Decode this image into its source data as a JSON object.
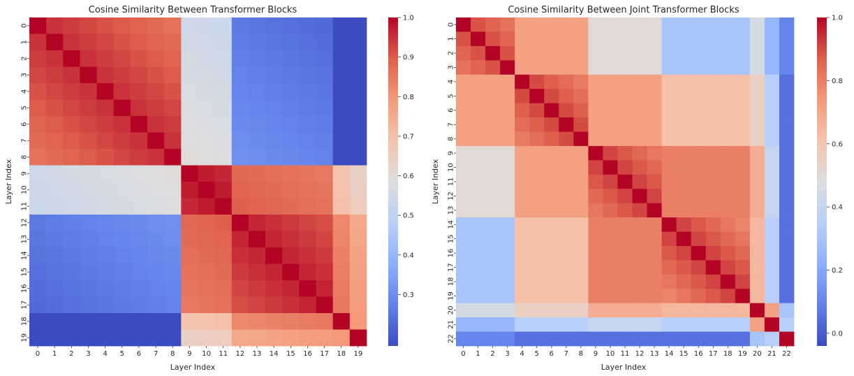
{
  "colormap": "coolwarm",
  "chart_data": [
    {
      "type": "heatmap",
      "title": "Cosine Similarity Between Transformer Blocks",
      "xlabel": "Layer Index",
      "ylabel": "Layer Index",
      "x": [
        "0",
        "1",
        "2",
        "3",
        "4",
        "5",
        "6",
        "7",
        "8",
        "9",
        "10",
        "11",
        "12",
        "13",
        "14",
        "15",
        "16",
        "17",
        "18",
        "19"
      ],
      "y": [
        "0",
        "1",
        "2",
        "3",
        "4",
        "5",
        "6",
        "7",
        "8",
        "9",
        "10",
        "11",
        "12",
        "13",
        "14",
        "15",
        "16",
        "17",
        "18",
        "19"
      ],
      "vmin": 0.17,
      "vmax": 1.0,
      "colorbar_ticks": [
        "0.3",
        "0.4",
        "0.5",
        "0.6",
        "0.7",
        "0.8",
        "0.9",
        "1.0"
      ],
      "model": {
        "blocks": [
          [
            0,
            8
          ],
          [
            9,
            11
          ],
          [
            12,
            17
          ],
          [
            18,
            18
          ],
          [
            19,
            19
          ]
        ],
        "within": [
          0.92,
          0.97,
          0.95,
          1.0,
          1.0
        ],
        "decay": 0.012,
        "between": [
          [
            1.0,
            0.6,
            0.33,
            0.2,
            0.2
          ],
          [
            0.6,
            1.0,
            0.9,
            0.74,
            0.7
          ],
          [
            0.33,
            0.9,
            1.0,
            0.86,
            0.8
          ],
          [
            0.2,
            0.74,
            0.86,
            1.0,
            0.8
          ],
          [
            0.2,
            0.7,
            0.8,
            0.8,
            1.0
          ]
        ],
        "gradient": 0.04
      }
    },
    {
      "type": "heatmap",
      "title": "Cosine Similarity Between Joint Transformer Blocks",
      "xlabel": "Layer Index",
      "ylabel": "Layer Index",
      "x": [
        "0",
        "1",
        "2",
        "3",
        "4",
        "5",
        "6",
        "7",
        "8",
        "9",
        "10",
        "11",
        "12",
        "13",
        "14",
        "15",
        "16",
        "17",
        "18",
        "19",
        "20",
        "21",
        "22"
      ],
      "y": [
        "0",
        "1",
        "2",
        "3",
        "4",
        "5",
        "6",
        "7",
        "8",
        "9",
        "10",
        "11",
        "12",
        "13",
        "14",
        "15",
        "16",
        "17",
        "18",
        "19",
        "20",
        "21",
        "22"
      ],
      "vmin": -0.04,
      "vmax": 1.0,
      "colorbar_ticks": [
        "0.0",
        "0.2",
        "0.4",
        "0.6",
        "0.8",
        "1.0"
      ],
      "model": {
        "blocks": [
          [
            0,
            3
          ],
          [
            4,
            8
          ],
          [
            9,
            13
          ],
          [
            14,
            19
          ],
          [
            20,
            20
          ],
          [
            21,
            21
          ],
          [
            22,
            22
          ]
        ],
        "within": [
          0.84,
          0.86,
          0.88,
          0.88,
          1.0,
          1.0,
          1.0
        ],
        "decay": 0.03,
        "between": [
          [
            1.0,
            0.72,
            0.5,
            0.3,
            0.45,
            0.25,
            0.1
          ],
          [
            0.72,
            1.0,
            0.72,
            0.62,
            0.55,
            0.35,
            0.05
          ],
          [
            0.5,
            0.72,
            1.0,
            0.8,
            0.68,
            0.4,
            0.05
          ],
          [
            0.3,
            0.62,
            0.8,
            1.0,
            0.65,
            0.35,
            0.05
          ],
          [
            0.45,
            0.55,
            0.68,
            0.65,
            1.0,
            0.72,
            0.3
          ],
          [
            0.25,
            0.35,
            0.4,
            0.35,
            0.72,
            1.0,
            0.35
          ],
          [
            0.1,
            0.05,
            0.05,
            0.05,
            0.3,
            0.35,
            1.0
          ]
        ],
        "gradient": 0.0
      }
    }
  ]
}
